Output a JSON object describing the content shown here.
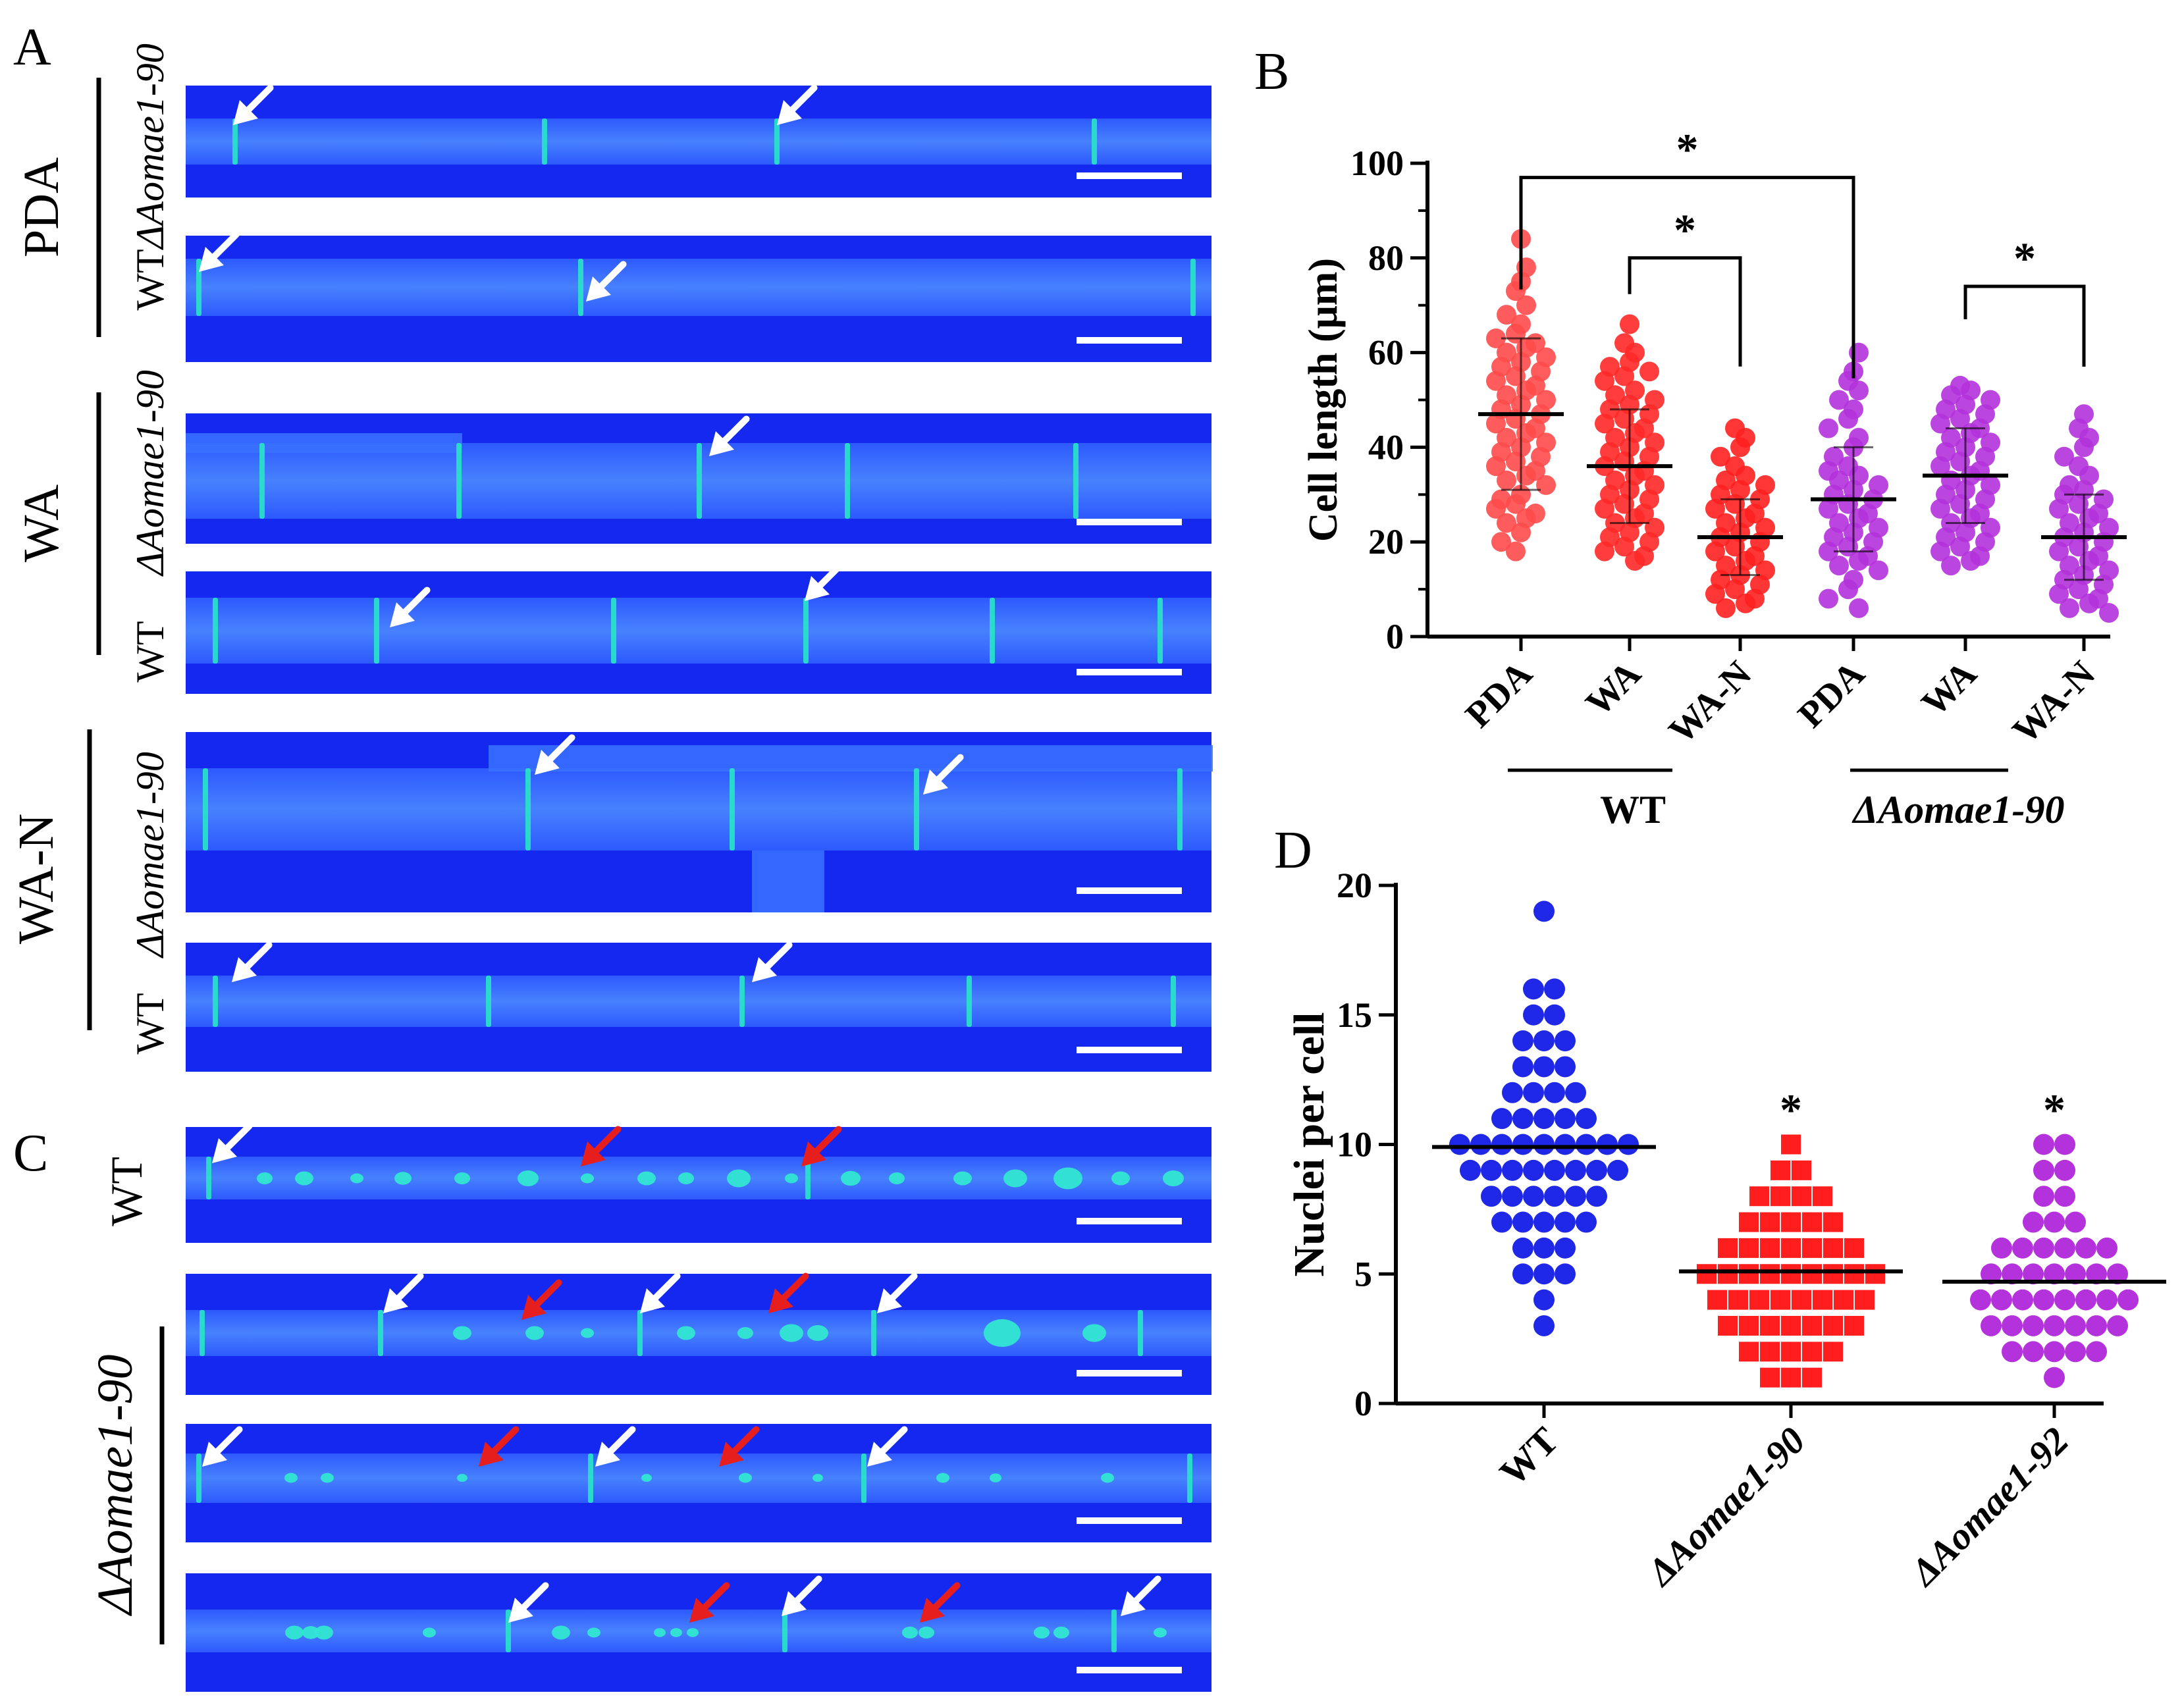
{
  "panels": {
    "A": {
      "letter": "A",
      "groups": [
        {
          "medium": "PDA",
          "rows": [
            {
              "strain": "ΔAomae1-90"
            },
            {
              "strain": "WT"
            }
          ]
        },
        {
          "medium": "WA",
          "rows": [
            {
              "strain": "ΔAomae1-90"
            },
            {
              "strain": "WT"
            }
          ]
        },
        {
          "medium": "WA-N",
          "rows": [
            {
              "strain": "ΔAomae1-90"
            },
            {
              "strain": "WT"
            }
          ]
        }
      ]
    },
    "B": {
      "letter": "B"
    },
    "C": {
      "letter": "C",
      "rows": [
        {
          "strain": "WT"
        },
        {
          "strain": ""
        },
        {
          "strain": ""
        },
        {
          "strain": ""
        }
      ],
      "group_label": "ΔAomae1-90"
    },
    "D": {
      "letter": "D"
    }
  },
  "colors": {
    "micrograph_bg": "#1428f0",
    "hypha": "#3c78ff",
    "septum": "#28e6c8",
    "nucleus": "#32e6d2",
    "arrow_white": "#ffffff",
    "arrow_red": "#e61e1e",
    "wt_red": "#ff3c3c",
    "mutant_purple": "#b432dc",
    "wt_blue": "#1e28e6",
    "mutant_red": "#ff1e1e"
  },
  "chart_data": [
    {
      "type": "scatter",
      "panel": "B",
      "ylabel": "Cell length (μm)",
      "ylim": [
        0,
        100
      ],
      "yticks": [
        0,
        20,
        40,
        60,
        80,
        100
      ],
      "categories": [
        "PDA",
        "WA",
        "WA-N",
        "PDA",
        "WA",
        "WA-N"
      ],
      "groups": [
        {
          "label": "WT",
          "categories": [
            0,
            1,
            2
          ]
        },
        {
          "label": "ΔAomae1-90",
          "categories": [
            3,
            4,
            5
          ]
        }
      ],
      "means": [
        47,
        36,
        21,
        29,
        34,
        21
      ],
      "sd": [
        16,
        12,
        8,
        11,
        10,
        9
      ],
      "series": [
        {
          "category": "PDA",
          "color": "#ff4b4b",
          "values": [
            84,
            78,
            75,
            73,
            70,
            68,
            66,
            64,
            63,
            62,
            61,
            60,
            59,
            58,
            57,
            56,
            55,
            54,
            53,
            52,
            51,
            50,
            49,
            48,
            47,
            46,
            45,
            44,
            43,
            42,
            41,
            40,
            39,
            38,
            37,
            36,
            35,
            34,
            33,
            32,
            30,
            29,
            28,
            27,
            26,
            25,
            24,
            22,
            20,
            18
          ]
        },
        {
          "category": "WA",
          "color": "#ff2828",
          "values": [
            66,
            62,
            60,
            58,
            57,
            56,
            55,
            54,
            52,
            51,
            50,
            49,
            48,
            47,
            46,
            45,
            44,
            43,
            42,
            41,
            40,
            39,
            38,
            37,
            36,
            35,
            34,
            33,
            32,
            31,
            30,
            29,
            28,
            27,
            26,
            25,
            24,
            23,
            22,
            21,
            20,
            19,
            18,
            17,
            16
          ]
        },
        {
          "category": "WA-N",
          "color": "#ff2020",
          "values": [
            44,
            42,
            40,
            38,
            36,
            34,
            33,
            32,
            31,
            30,
            29,
            28,
            27,
            26,
            25,
            24,
            23,
            22,
            21,
            20,
            19,
            18,
            17,
            16,
            15,
            14,
            13,
            12,
            11,
            10,
            9,
            8,
            7,
            6
          ]
        },
        {
          "category": "PDA",
          "color": "#b432dc",
          "values": [
            60,
            56,
            54,
            52,
            50,
            48,
            46,
            44,
            42,
            40,
            38,
            36,
            35,
            34,
            33,
            32,
            31,
            30,
            29,
            28,
            27,
            26,
            25,
            24,
            23,
            22,
            21,
            20,
            19,
            18,
            17,
            16,
            15,
            14,
            12,
            10,
            8,
            6
          ]
        },
        {
          "category": "WA",
          "color": "#b432dc",
          "values": [
            53,
            52,
            51,
            50,
            49,
            48,
            47,
            46,
            45,
            44,
            43,
            42,
            41,
            40,
            39,
            38,
            37,
            36,
            35,
            34,
            33,
            32,
            31,
            30,
            29,
            28,
            27,
            26,
            25,
            24,
            23,
            22,
            21,
            20,
            19,
            18,
            17,
            16,
            15
          ]
        },
        {
          "category": "WA-N",
          "color": "#b432dc",
          "values": [
            47,
            44,
            42,
            40,
            38,
            36,
            34,
            32,
            31,
            30,
            29,
            28,
            27,
            26,
            25,
            24,
            23,
            22,
            21,
            20,
            19,
            18,
            17,
            16,
            15,
            14,
            13,
            12,
            11,
            10,
            9,
            8,
            7,
            6,
            5
          ]
        }
      ],
      "significance": [
        {
          "from": 0,
          "to": 3,
          "y": 97,
          "label": "*"
        },
        {
          "from": 1,
          "to": 2,
          "y": 80,
          "label": "*"
        },
        {
          "from": 4,
          "to": 5,
          "y": 74,
          "label": "*"
        }
      ]
    },
    {
      "type": "scatter",
      "panel": "D",
      "ylabel": "Nuclei per cell",
      "ylim": [
        0,
        20
      ],
      "yticks": [
        0,
        5,
        10,
        15,
        20
      ],
      "categories": [
        "WT",
        "ΔAomae1-90",
        "ΔAomae1-92"
      ],
      "means": [
        9.9,
        5.1,
        4.7
      ],
      "series": [
        {
          "category": "WT",
          "color": "#1e28e6",
          "marker": "circle",
          "counts": {
            "3": 1,
            "4": 1,
            "5": 3,
            "6": 3,
            "7": 5,
            "8": 6,
            "9": 8,
            "10": 9,
            "11": 5,
            "12": 4,
            "13": 3,
            "14": 3,
            "15": 2,
            "16": 2,
            "19": 1
          }
        },
        {
          "category": "ΔAomae1-90",
          "color": "#ff1e1e",
          "marker": "square",
          "counts": {
            "1": 3,
            "2": 5,
            "3": 7,
            "4": 8,
            "5": 9,
            "6": 7,
            "7": 5,
            "8": 4,
            "9": 2,
            "10": 1
          }
        },
        {
          "category": "ΔAomae1-92",
          "color": "#b432dc",
          "marker": "circle",
          "counts": {
            "1": 1,
            "2": 5,
            "3": 7,
            "4": 8,
            "5": 7,
            "6": 6,
            "7": 3,
            "8": 2,
            "9": 2,
            "10": 2
          }
        }
      ],
      "significance": [
        {
          "category": 1,
          "label": "*"
        },
        {
          "category": 2,
          "label": "*"
        }
      ]
    }
  ]
}
